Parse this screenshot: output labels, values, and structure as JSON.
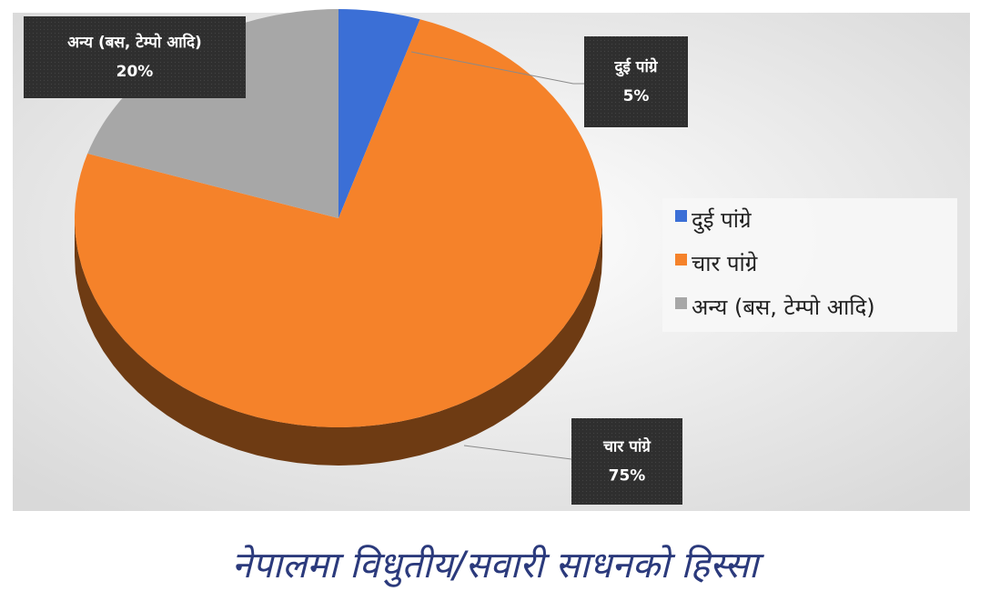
{
  "chart_data": {
    "type": "pie",
    "title": "नेपालमा विधुतीय/सवारी साधनको हिस्सा",
    "categories": [
      "दुई पांग्रे",
      "चार पांग्रे",
      "अन्य (बस, टेम्पो आदि)"
    ],
    "values": [
      5,
      75,
      20
    ],
    "value_labels": [
      "5%",
      "75%",
      "20%"
    ],
    "colors": [
      "#3b6fd6",
      "#f5822a",
      "#a7a7a7"
    ],
    "legend": "right"
  }
}
